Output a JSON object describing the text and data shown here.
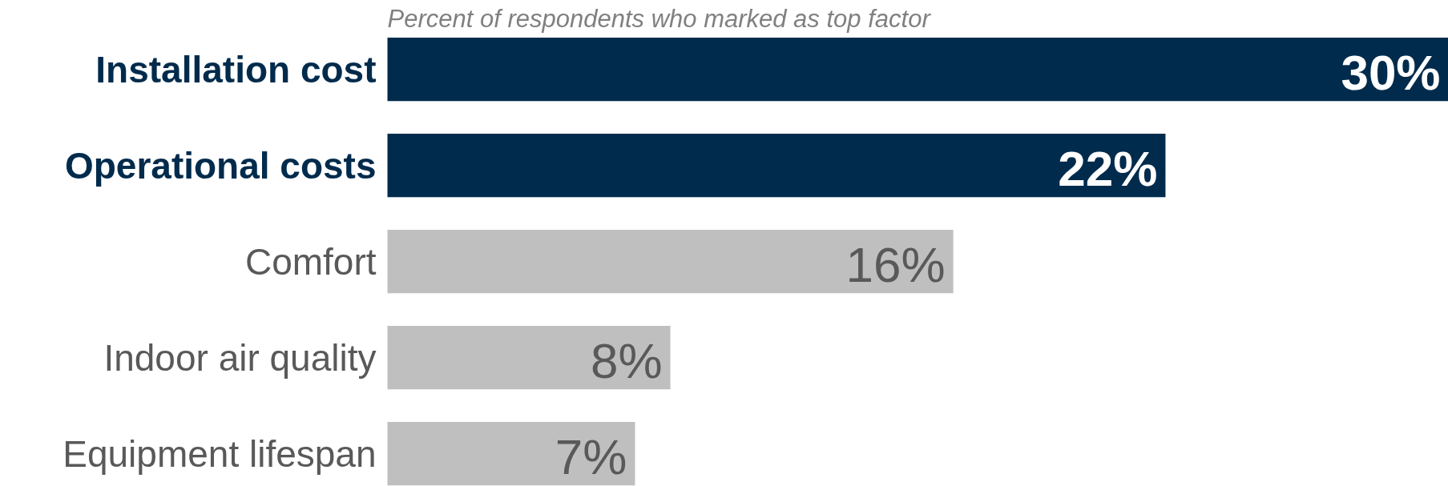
{
  "chart_data": {
    "type": "bar",
    "orientation": "horizontal",
    "title": "Percent of respondents who marked as top factor",
    "categories": [
      "Installation cost",
      "Operational costs",
      "Comfort",
      "Indoor air quality",
      "Equipment lifespan"
    ],
    "values": [
      30,
      22,
      16,
      8,
      7
    ],
    "colors": [
      "#002b4c",
      "#002b4c",
      "#bfbfbf",
      "#bfbfbf",
      "#bfbfbf"
    ],
    "value_labels": [
      "30%",
      "22%",
      "16%",
      "8%",
      "7%"
    ]
  }
}
